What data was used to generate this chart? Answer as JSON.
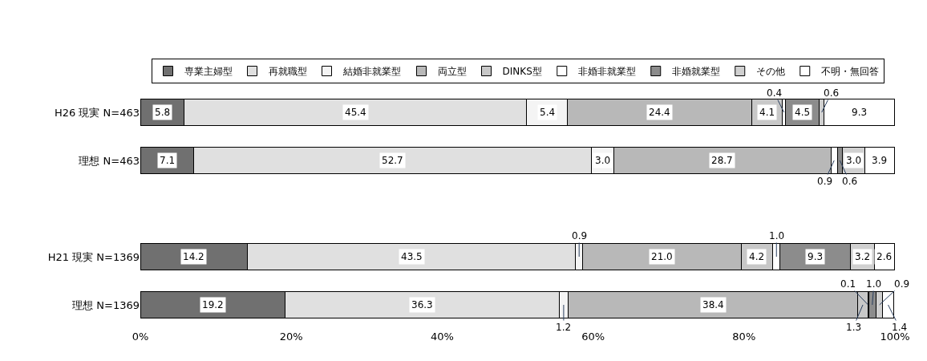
{
  "chart_data": {
    "type": "bar",
    "orientation": "horizontal",
    "stacked": true,
    "categories": [
      "H26 現実 N=463",
      "理想 N=463",
      null,
      "H21 現実 N=1369",
      "理想 N=1369"
    ],
    "series": [
      {
        "name": "専業主婦型",
        "color": "#707070",
        "values": [
          5.8,
          7.1,
          null,
          14.2,
          19.2
        ],
        "value_labels": [
          "5.8",
          "7.1",
          null,
          "14.2",
          "19.2"
        ]
      },
      {
        "name": "再就職型",
        "color": "#e0e0e0",
        "values": [
          45.4,
          52.7,
          null,
          43.5,
          36.3
        ],
        "value_labels": [
          "45.4",
          "52.7",
          null,
          "43.5",
          "36.3"
        ]
      },
      {
        "name": "結婚非就業型",
        "color": "#f4f4f4",
        "values": [
          5.4,
          3.0,
          null,
          0.9,
          1.2
        ],
        "value_labels": [
          "5.4",
          "3.0",
          null,
          "0.9",
          "1.2"
        ]
      },
      {
        "name": "両立型",
        "color": "#b8b8b8",
        "values": [
          24.4,
          28.7,
          null,
          21.0,
          38.4
        ],
        "value_labels": [
          "24.4",
          "28.7",
          null,
          "21.0",
          "38.4"
        ]
      },
      {
        "name": "DINKS型",
        "color": "#c8c8c8",
        "values": [
          4.1,
          0,
          null,
          4.2,
          1.3
        ],
        "value_labels": [
          "4.1",
          null,
          null,
          "4.2",
          "1.3"
        ]
      },
      {
        "name": "非婚非就業型",
        "color": "#ffffff",
        "values": [
          0.4,
          0.9,
          null,
          1.0,
          0.1
        ],
        "value_labels": [
          "0.4",
          "0.9",
          null,
          "1.0",
          "0.1"
        ]
      },
      {
        "name": "非婚就業型",
        "color": "#8c8c8c",
        "values": [
          4.5,
          0.6,
          null,
          9.3,
          1.0
        ],
        "value_labels": [
          "4.5",
          "0.6",
          null,
          "9.3",
          "1.0"
        ]
      },
      {
        "name": "その他",
        "color": "#d0d0d0",
        "values": [
          0.6,
          3.0,
          null,
          3.2,
          0.9
        ],
        "value_labels": [
          "0.6",
          "3.0",
          null,
          "3.2",
          "0.9"
        ]
      },
      {
        "name": "不明・無回答",
        "color": "#ffffff",
        "values": [
          9.3,
          3.9,
          null,
          2.6,
          1.4
        ],
        "value_labels": [
          "9.3",
          "3.9",
          null,
          "2.6",
          "1.4"
        ]
      }
    ],
    "xlim": [
      0,
      100
    ],
    "xticks": [
      {
        "value": 0,
        "label": "0%"
      },
      {
        "value": 20,
        "label": "20%"
      },
      {
        "value": 40,
        "label": "40%"
      },
      {
        "value": 60,
        "label": "60%"
      },
      {
        "value": 80,
        "label": "80%"
      },
      {
        "value": 100,
        "label": "100%"
      }
    ],
    "legend": "top"
  }
}
